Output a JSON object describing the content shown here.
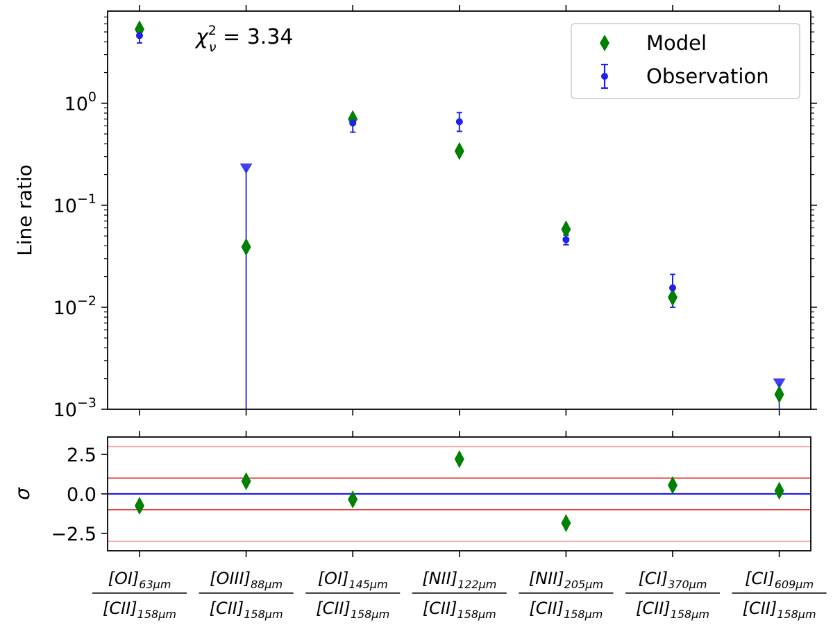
{
  "chart_data": [
    {
      "type": "scatter",
      "panel": "top",
      "ylabel": "Line ratio",
      "yscale": "log",
      "ylim": [
        0.001,
        8.0
      ],
      "y_ticks": [
        {
          "value": 1,
          "base": "10",
          "exp": "0"
        },
        {
          "value": 0.1,
          "base": "10",
          "exp": "−1"
        },
        {
          "value": 0.01,
          "base": "10",
          "exp": "−2"
        },
        {
          "value": 0.001,
          "base": "10",
          "exp": "−3"
        }
      ],
      "annotation": {
        "chi": "χ",
        "sup": "2",
        "sub": "ν",
        "rest": " = 3.34"
      },
      "legend": {
        "model": "Model",
        "observation": "Observation",
        "placement": "top-right"
      },
      "colors": {
        "model": "#008000",
        "observation": "#1f1fee"
      },
      "model_values": [
        5.3,
        0.039,
        0.7,
        0.34,
        0.058,
        0.0125,
        0.0014
      ],
      "observations": [
        {
          "value": 4.6,
          "lower": 3.9,
          "upper": 5.5,
          "upper_limit": false
        },
        {
          "value": 0.23,
          "lower": 0.001,
          "upper": 0.23,
          "upper_limit": true
        },
        {
          "value": 0.64,
          "lower": 0.52,
          "upper": 0.74,
          "upper_limit": false
        },
        {
          "value": 0.66,
          "lower": 0.53,
          "upper": 0.81,
          "upper_limit": false
        },
        {
          "value": 0.046,
          "lower": 0.041,
          "upper": 0.051,
          "upper_limit": false
        },
        {
          "value": 0.0155,
          "lower": 0.01,
          "upper": 0.021,
          "upper_limit": false
        },
        {
          "value": 0.0018,
          "lower": 0.001,
          "upper": 0.0018,
          "upper_limit": true
        }
      ]
    },
    {
      "type": "scatter",
      "panel": "bottom",
      "ylabel": "σ",
      "ylim": [
        -3.6,
        3.6
      ],
      "y_ticks": [
        "2.5",
        "0.0",
        "−2.5"
      ],
      "y_tick_values": [
        2.5,
        0.0,
        -2.5
      ],
      "reference_lines": [
        {
          "y": 3,
          "color": "#f4a7a7"
        },
        {
          "y": 1,
          "color": "#e8413c"
        },
        {
          "y": 0,
          "color": "#1f1fee"
        },
        {
          "y": -1,
          "color": "#e8413c"
        },
        {
          "y": -3,
          "color": "#f4a7a7"
        }
      ],
      "values": [
        -0.75,
        0.8,
        -0.35,
        2.2,
        -1.85,
        0.55,
        0.2
      ]
    }
  ],
  "categories": [
    {
      "num": "[OI]",
      "num_sub": "63μm",
      "den": "[CII]",
      "den_sub": "158μm"
    },
    {
      "num": "[OIII]",
      "num_sub": "88μm",
      "den": "[CII]",
      "den_sub": "158μm"
    },
    {
      "num": "[OI]",
      "num_sub": "145μm",
      "den": "[CII]",
      "den_sub": "158μm"
    },
    {
      "num": "[NII]",
      "num_sub": "122μm",
      "den": "[CII]",
      "den_sub": "158μm"
    },
    {
      "num": "[NII]",
      "num_sub": "205μm",
      "den": "[CII]",
      "den_sub": "158μm"
    },
    {
      "num": "[CI]",
      "num_sub": "370μm",
      "den": "[CII]",
      "den_sub": "158μm"
    },
    {
      "num": "[CI]",
      "num_sub": "609μm",
      "den": "[CII]",
      "den_sub": "158μm"
    }
  ]
}
